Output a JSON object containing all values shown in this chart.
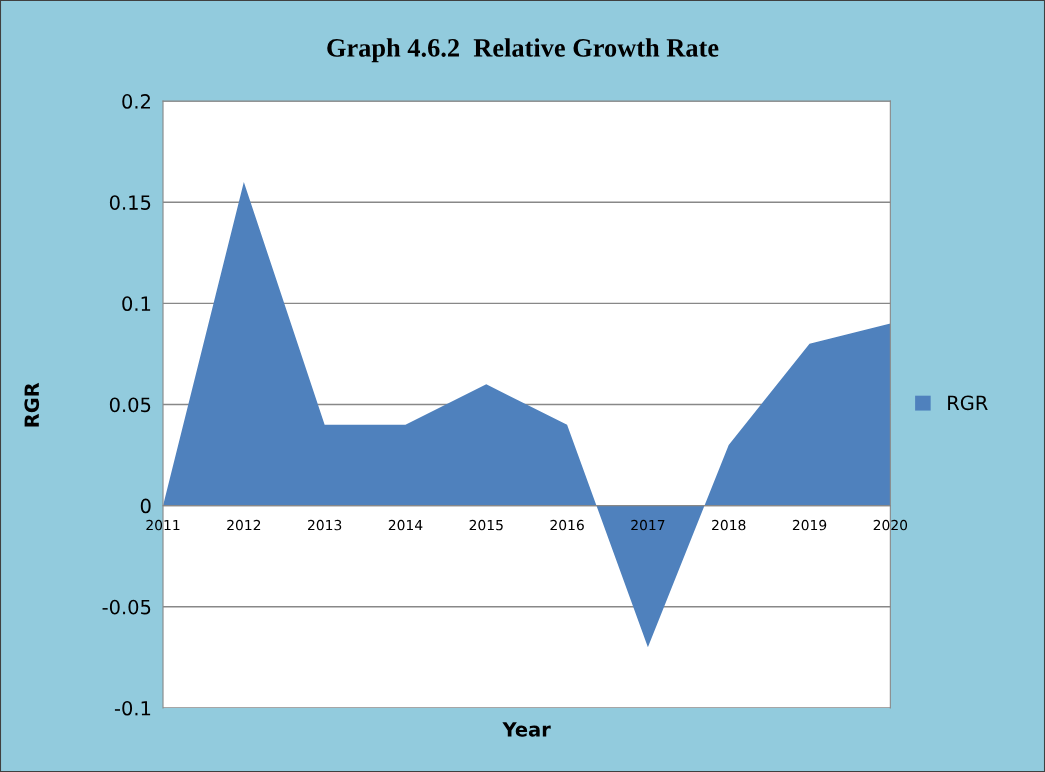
{
  "chart_data": {
    "type": "area",
    "title": "Graph 4.6.2  Relative Growth Rate",
    "xlabel": "Year",
    "ylabel": "RGR",
    "categories": [
      "2011",
      "2012",
      "2013",
      "2014",
      "2015",
      "2016",
      "2017",
      "2018",
      "2019",
      "2020"
    ],
    "series": [
      {
        "name": "RGR",
        "color": "#4f81bd",
        "values": [
          0,
          0.16,
          0.04,
          0.04,
          0.06,
          0.04,
          -0.07,
          0.03,
          0.08,
          0.09
        ]
      }
    ],
    "ylim": [
      -0.1,
      0.2
    ],
    "yticks": [
      -0.1,
      -0.05,
      0,
      0.05,
      0.1,
      0.15,
      0.2
    ],
    "grid": "y",
    "legend": "right"
  }
}
